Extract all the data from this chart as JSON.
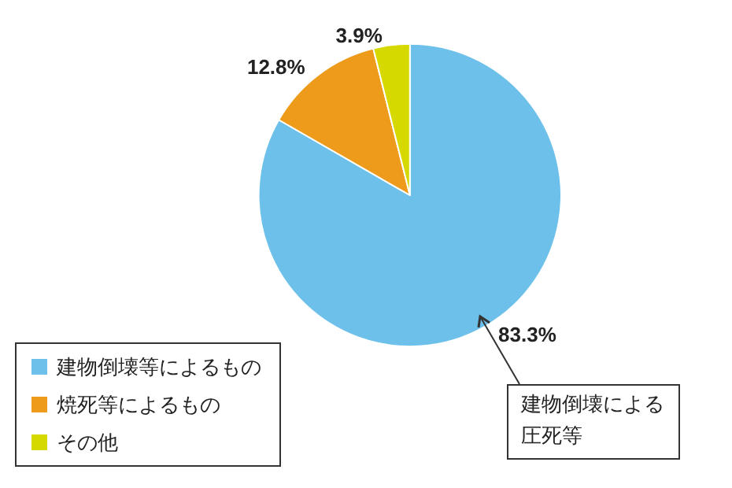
{
  "chart_data": {
    "type": "pie",
    "categories": [
      "建物倒壊等によるもの",
      "焼死等によるもの",
      "その他"
    ],
    "values": [
      83.3,
      12.8,
      3.9
    ],
    "value_labels": [
      "83.3%",
      "12.8%",
      "3.9%"
    ],
    "colors": [
      "#6cc0ea",
      "#ee9b1b",
      "#d5d900"
    ],
    "legend": "bottom left",
    "annotations": [
      "建物倒壊による圧死等"
    ]
  }
}
